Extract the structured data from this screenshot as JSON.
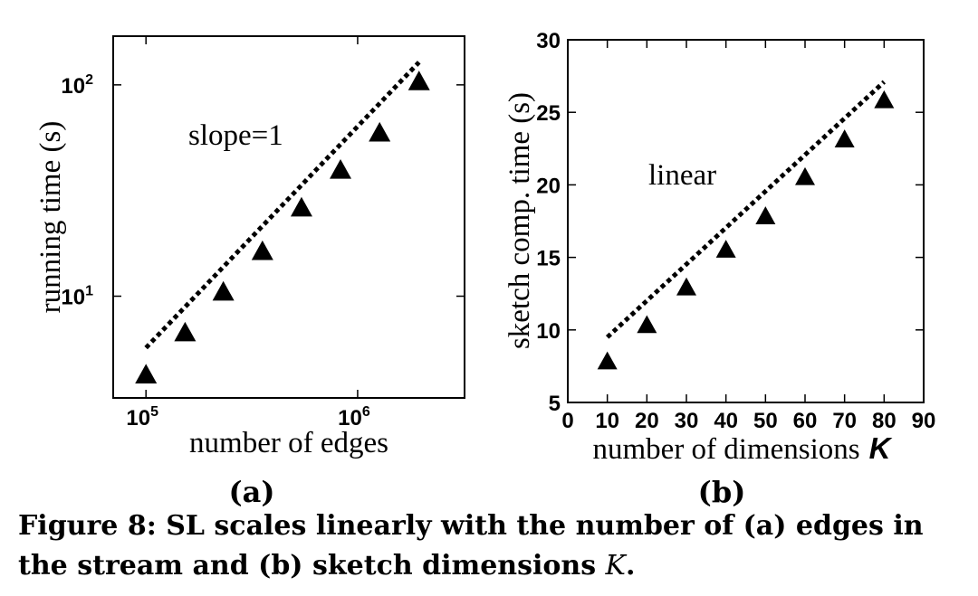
{
  "chart_data": [
    {
      "type": "scatter",
      "subplot_label": "(a)",
      "xlabel": "number of edges",
      "ylabel": "running time (s)",
      "xscale": "log",
      "yscale": "log",
      "xlim": [
        70000,
        3200000
      ],
      "ylim": [
        3.3,
        170
      ],
      "xticks": [
        {
          "value": 100000,
          "base": "10",
          "exp": "5"
        },
        {
          "value": 1000000,
          "base": "10",
          "exp": "6"
        }
      ],
      "yticks": [
        {
          "value": 10,
          "base": "10",
          "exp": "1"
        },
        {
          "value": 100,
          "base": "10",
          "exp": "2"
        }
      ],
      "points": {
        "marker": "triangle",
        "x": [
          100000,
          153000,
          232000,
          355000,
          543000,
          830000,
          1270000,
          1950000
        ],
        "y": [
          4.3,
          6.8,
          10.6,
          16.5,
          26.5,
          40,
          60,
          105
        ]
      },
      "reference_line": {
        "style": "dotted",
        "x": [
          100000,
          1950000
        ],
        "y": [
          5.7,
          128
        ]
      },
      "annotation": "slope=1",
      "grid": false
    },
    {
      "type": "scatter",
      "subplot_label": "(b)",
      "xlabel": "number of dimensions",
      "xlabel_var": "K",
      "ylabel": "sketch comp. time (s)",
      "xlim": [
        0,
        90
      ],
      "ylim": [
        5,
        30
      ],
      "xticks": [
        "0",
        "10",
        "20",
        "30",
        "40",
        "50",
        "60",
        "70",
        "80",
        "90"
      ],
      "yticks": [
        "5",
        "10",
        "15",
        "20",
        "25",
        "30"
      ],
      "points": {
        "marker": "triangle",
        "x": [
          10,
          20,
          30,
          40,
          50,
          60,
          70,
          80
        ],
        "y": [
          7.9,
          10.4,
          13.0,
          15.6,
          17.9,
          20.6,
          23.2,
          25.9
        ]
      },
      "reference_line": {
        "style": "dotted",
        "x": [
          10,
          80
        ],
        "y": [
          9.5,
          27.1
        ]
      },
      "annotation": "linear",
      "grid": false
    }
  ],
  "caption": {
    "text": "Figure 8: SL scales linearly with the number of (a) edges in the stream and (b) sketch dimensions ",
    "var": "K",
    "end": "."
  }
}
